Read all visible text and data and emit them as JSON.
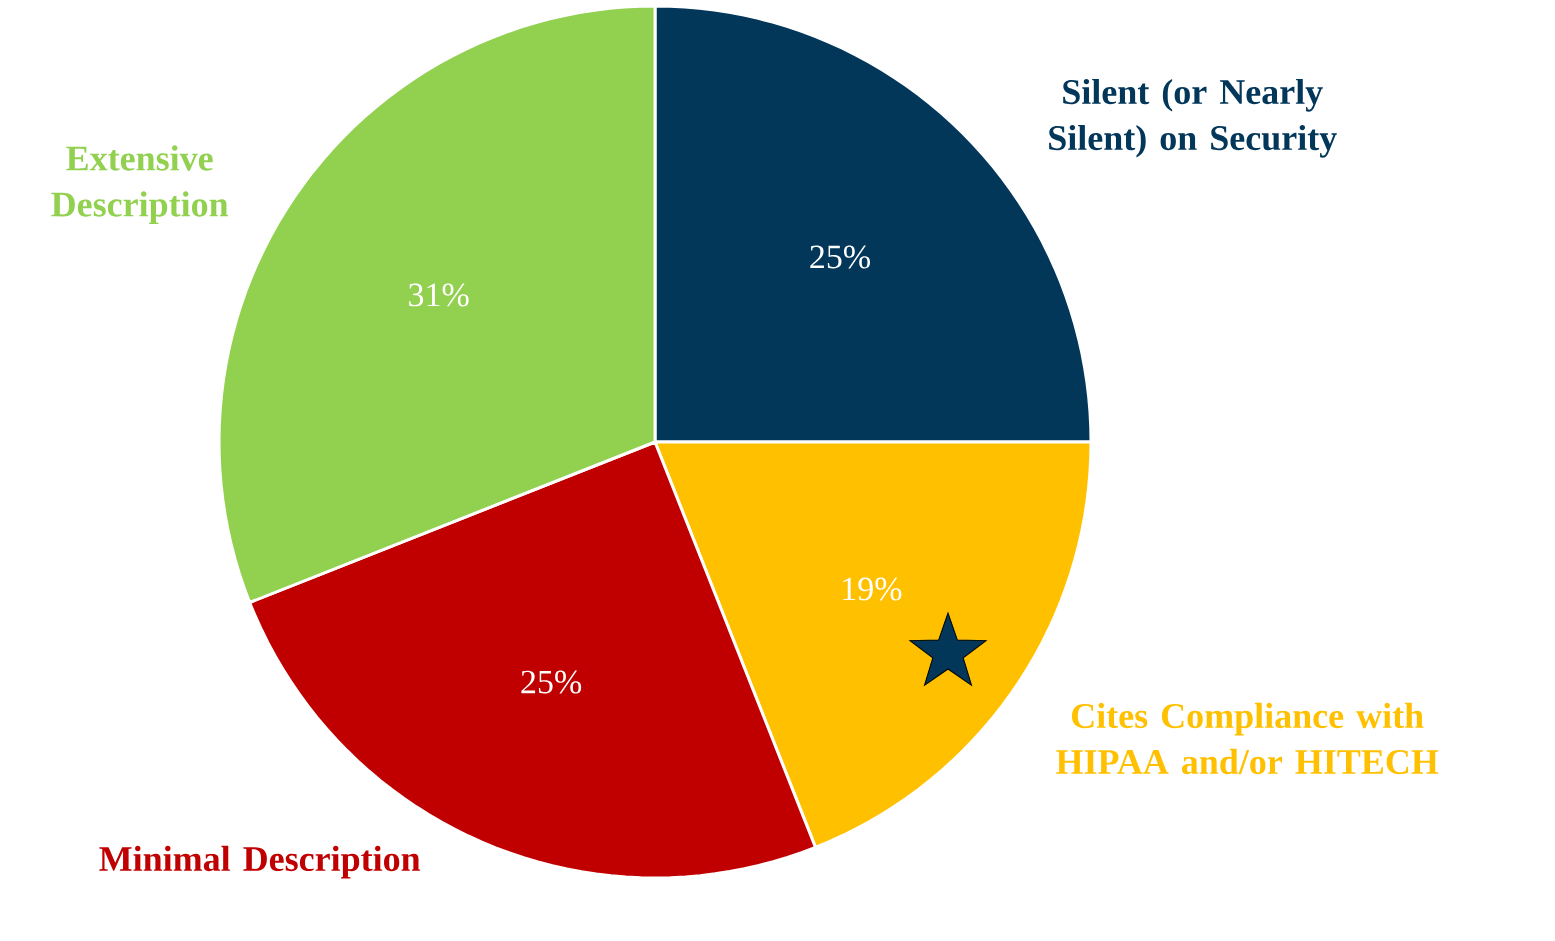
{
  "chart_data": {
    "type": "pie",
    "categories": [
      "Silent (or Nearly Silent) on Security",
      "Cites Compliance with HIPAA  and/or HITECH",
      "Minimal Description",
      "Extensive Description"
    ],
    "values": [
      25,
      19,
      25,
      31
    ],
    "value_labels": [
      "25%",
      "19%",
      "25%",
      "31%"
    ],
    "colors": [
      "#03375a",
      "#ffc000",
      "#c00000",
      "#92d050"
    ]
  }
}
